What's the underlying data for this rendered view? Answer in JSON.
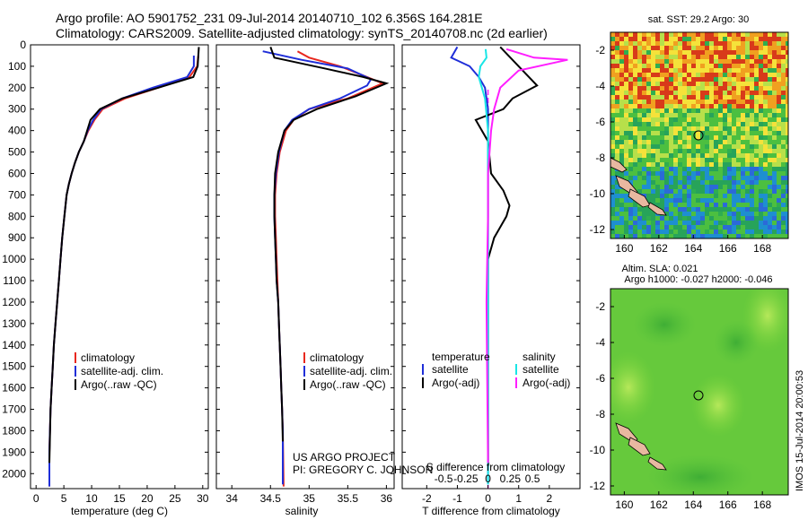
{
  "title_line1": "Argo profile: AO 5901752_231 09-Jul-2014 20140710_102 6.356S 164.281E",
  "title_line2": "Climatology: CARS2009. Satellite-adjusted climatology: synTS_20140708.nc (2d earlier)",
  "depth_ticks": [
    "0",
    "100",
    "200",
    "300",
    "400",
    "500",
    "600",
    "700",
    "800",
    "900",
    "1000",
    "1100",
    "1200",
    "1300",
    "1400",
    "1500",
    "1600",
    "1700",
    "1800",
    "1900",
    "2000"
  ],
  "colors": {
    "climatology": "#e8281e",
    "satellite": "#1f2ed8",
    "argo": "#000000",
    "sal_sat": "#19e6e6",
    "sal_argo": "#ff1eff"
  },
  "legend1": [
    "climatology",
    "satellite-adj. clim.",
    "Argo(..raw -QC)"
  ],
  "legend2": [
    "climatology",
    "satellite-adj. clim.",
    "Argo(..raw -QC)"
  ],
  "legend3": {
    "head_t": "temperature",
    "head_s": "salinity",
    "sat_t": "satellite",
    "argo_t": "Argo(-adj)",
    "sat_s": "satellite",
    "argo_s": "Argo(-adj)"
  },
  "credit1": "US ARGO PROJECT",
  "credit2": "PI: GREGORY C. JOHNSON",
  "map1": {
    "title": "sat. SST: 29.2 Argo: 30",
    "yticks": [
      "-2",
      "-4",
      "-6",
      "-8",
      "-10",
      "-12"
    ],
    "xticks": [
      "160",
      "162",
      "164",
      "166",
      "168"
    ]
  },
  "map2": {
    "title1": "Altim. SLA: 0.021",
    "title2": "Argo h1000: -0.027 h2000: -0.046",
    "yticks": [
      "-2",
      "-4",
      "-6",
      "-8",
      "-10",
      "-12"
    ],
    "xticks": [
      "160",
      "162",
      "164",
      "166",
      "168"
    ]
  },
  "stamp": "IMOS 15-Jul-2014 20:00:53",
  "chart_data": [
    {
      "type": "line",
      "xlabel": "temperature (deg C)",
      "ylabel": "",
      "xlim": [
        -1,
        31
      ],
      "ylim": [
        2070,
        0
      ],
      "xticks": [
        "0",
        "5",
        "10",
        "15",
        "20",
        "25",
        "30"
      ],
      "series": [
        {
          "name": "climatology",
          "x": [
            29.2,
            29.0,
            27.6,
            22,
            16,
            12,
            10.5,
            9.4,
            8.6,
            7.7,
            7.0,
            6.4,
            5.9,
            5.5,
            5.1,
            4.7,
            4.4,
            4.1,
            3.8,
            3.5,
            3.2,
            3.0,
            2.8,
            2.6,
            2.4,
            2.4
          ],
          "y": [
            50,
            100,
            150,
            200,
            250,
            300,
            350,
            400,
            450,
            500,
            550,
            600,
            650,
            700,
            800,
            900,
            1000,
            1100,
            1200,
            1300,
            1400,
            1500,
            1600,
            1700,
            1900,
            2060
          ]
        },
        {
          "name": "satellite-adj. clim.",
          "x": [
            28.4,
            28.4,
            27.2,
            21,
            15.5,
            11.7,
            10.3,
            9.3,
            8.6,
            7.7,
            7.0,
            6.4,
            5.9,
            5.5,
            5.1,
            4.7,
            4.4,
            4.1,
            3.8,
            3.5,
            3.2,
            3.0,
            2.8,
            2.6,
            2.4,
            2.4
          ],
          "y": [
            50,
            100,
            150,
            200,
            250,
            300,
            350,
            400,
            450,
            500,
            550,
            600,
            650,
            700,
            800,
            900,
            1000,
            1100,
            1200,
            1300,
            1400,
            1500,
            1600,
            1700,
            1900,
            2060
          ]
        },
        {
          "name": "Argo(..raw -QC)",
          "x": [
            29.3,
            29.1,
            28.3,
            22,
            15.5,
            11.5,
            9.8,
            9.2,
            8.6,
            7.7,
            7.0,
            6.4,
            5.9,
            5.5,
            5.1,
            4.7,
            4.4,
            4.1,
            3.8,
            3.5,
            3.2,
            3.0,
            2.8,
            2.6,
            2.4
          ],
          "y": [
            10,
            100,
            150,
            200,
            250,
            300,
            350,
            400,
            450,
            500,
            550,
            600,
            650,
            700,
            800,
            900,
            1000,
            1100,
            1200,
            1300,
            1400,
            1500,
            1600,
            1700,
            1950
          ]
        }
      ]
    },
    {
      "type": "line",
      "xlabel": "salinity",
      "ylabel": "",
      "xlim": [
        33.8,
        36.1
      ],
      "ylim": [
        2070,
        0
      ],
      "xticks": [
        "34",
        "34.5",
        "35",
        "35.5",
        "36"
      ],
      "series": [
        {
          "name": "climatology",
          "x": [
            34.85,
            35.0,
            35.4,
            35.75,
            35.95,
            35.5,
            35.0,
            34.8,
            34.7,
            34.62,
            34.58,
            34.56,
            34.56,
            34.57,
            34.58,
            34.59,
            34.6,
            34.61,
            34.62,
            34.63,
            34.64,
            34.65,
            34.66,
            34.67
          ],
          "y": [
            30,
            60,
            100,
            150,
            180,
            250,
            300,
            350,
            400,
            500,
            600,
            700,
            800,
            900,
            1000,
            1100,
            1200,
            1300,
            1400,
            1500,
            1600,
            1700,
            1800,
            2060
          ]
        },
        {
          "name": "satellite-adj. clim.",
          "x": [
            34.4,
            34.9,
            35.5,
            35.8,
            35.75,
            35.4,
            35.0,
            34.78,
            34.68,
            34.61,
            34.57,
            34.55,
            34.55,
            34.56,
            34.57,
            34.58,
            34.6,
            34.61,
            34.62,
            34.63,
            34.64,
            34.65,
            34.66,
            34.66
          ],
          "y": [
            30,
            70,
            110,
            160,
            190,
            250,
            300,
            350,
            400,
            500,
            600,
            700,
            800,
            900,
            1000,
            1100,
            1200,
            1300,
            1400,
            1500,
            1600,
            1700,
            1800,
            2050
          ]
        },
        {
          "name": "Argo(..raw -QC)",
          "x": [
            34.5,
            34.55,
            35.2,
            35.7,
            36.0,
            35.6,
            35.1,
            34.8,
            34.68,
            34.6,
            34.56,
            34.55,
            34.55,
            34.56,
            34.57,
            34.58,
            34.6,
            34.61,
            34.62,
            34.63,
            34.64,
            34.65,
            34.66
          ],
          "y": [
            10,
            60,
            110,
            150,
            180,
            240,
            300,
            350,
            400,
            500,
            600,
            700,
            800,
            900,
            1000,
            1100,
            1200,
            1300,
            1400,
            1500,
            1600,
            1700,
            1850
          ]
        }
      ]
    },
    {
      "type": "line",
      "xlabel": "T difference from climatology",
      "ylabel": "",
      "xlim": [
        -2.8,
        3.0
      ],
      "ylim": [
        2070,
        0
      ],
      "xticks": [
        "-2",
        "-1",
        "0",
        "1",
        "2"
      ],
      "secondary_xlabel": "S difference from climatology",
      "secondary_xticks": [
        "-0.5",
        "-0.25",
        "0",
        "0.25",
        "0.5"
      ],
      "series": [
        {
          "name": "satellite (temperature)",
          "x": [
            -1.0,
            -1.2,
            -0.6,
            -0.3,
            -0.1,
            0.0,
            0.0,
            0.0,
            0.0,
            0.0,
            0.0,
            0.0
          ],
          "y": [
            10,
            60,
            100,
            150,
            200,
            300,
            400,
            600,
            800,
            1000,
            1500,
            2050
          ]
        },
        {
          "name": "Argo(-adj) (temperature)",
          "x": [
            0.4,
            1.0,
            1.6,
            0.8,
            0.5,
            -0.4,
            0.0,
            0.1,
            0.5,
            0.7,
            0.6,
            0.2,
            0.0,
            0.0,
            0.0
          ],
          "y": [
            10,
            100,
            190,
            250,
            300,
            350,
            450,
            600,
            680,
            750,
            800,
            900,
            1000,
            1500,
            1950
          ]
        },
        {
          "name": "satellite (salinity)",
          "x": [
            -0.08,
            -0.05,
            -0.25,
            -0.3,
            -0.1,
            0.0,
            0.0,
            0.0,
            0.0
          ],
          "y": [
            20,
            60,
            100,
            150,
            250,
            400,
            800,
            1500,
            2050
          ]
        },
        {
          "name": "Argo(-adj) (salinity)",
          "x": [
            0.6,
            1.5,
            2.6,
            1.0,
            0.4,
            0.2,
            0.1,
            0.0,
            0.0,
            -0.05,
            0.0
          ],
          "y": [
            20,
            60,
            70,
            120,
            200,
            300,
            400,
            600,
            800,
            1200,
            1950
          ]
        }
      ]
    }
  ]
}
